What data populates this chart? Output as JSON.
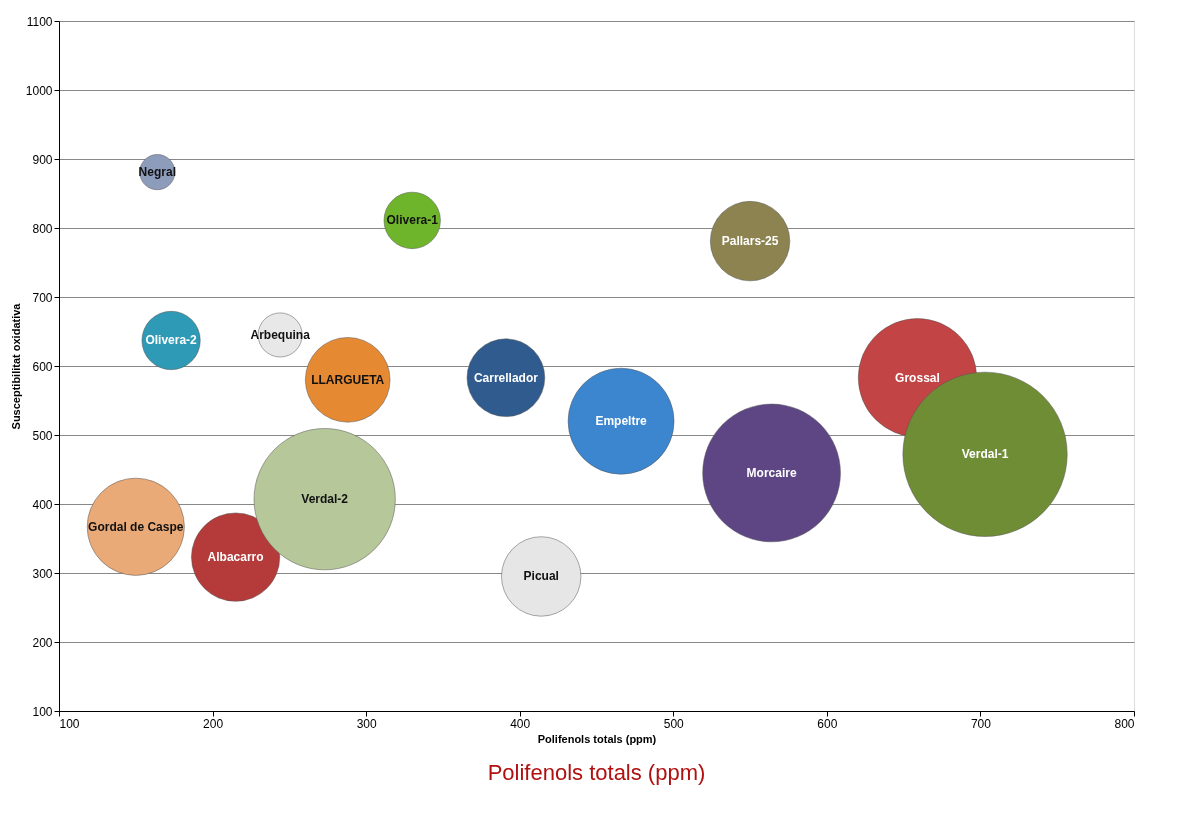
{
  "chart_data": {
    "type": "bubble",
    "xlabel": "Polifenols totals (ppm)",
    "ylabel": "Susceptibilitat oxidativa",
    "x": [
      164,
      330,
      550,
      173,
      244,
      288,
      391,
      466,
      659,
      703,
      564,
      150,
      215,
      273,
      414
    ],
    "values": [
      881,
      811,
      781,
      637,
      645,
      580,
      583,
      520,
      583,
      472,
      445,
      367,
      323,
      407,
      295
    ],
    "sizes": [
      0.046,
      0.118,
      0.234,
      0.126,
      0.072,
      0.266,
      0.224,
      0.416,
      0.519,
      1,
      0.703,
      0.35,
      0.289,
      0.74,
      0.234
    ],
    "colors": [
      "#8e9cbc",
      "#6fb52c",
      "#8c8350",
      "#2e9ab5",
      "#e8e8e8",
      "#e58a33",
      "#2f5b8e",
      "#3b86cf",
      "#c24444",
      "#6e8d35",
      "#5e4685",
      "#eaaa78",
      "#b53a3a",
      "#b6c79a",
      "#e6e6e6"
    ],
    "xlim": [
      100,
      800
    ],
    "xticks": [
      100,
      200,
      300,
      400,
      500,
      600,
      700,
      800
    ],
    "ylim": [
      100,
      1100
    ],
    "yticks": [
      100,
      200,
      300,
      400,
      500,
      600,
      700,
      800,
      900,
      1000,
      1100
    ],
    "grid": "y",
    "annotations": [
      {
        "text": "Negral",
        "x": 164,
        "y": 881
      },
      {
        "text": "Olivera-1",
        "x": 330,
        "y": 811
      },
      {
        "text": "Pallars-25",
        "x": 550,
        "y": 781
      },
      {
        "text": "Olivera-2",
        "x": 173,
        "y": 637
      },
      {
        "text": "Arbequina",
        "x": 244,
        "y": 645
      },
      {
        "text": "LLARGUETA",
        "x": 288,
        "y": 580
      },
      {
        "text": "Carrellador",
        "x": 391,
        "y": 583
      },
      {
        "text": "Empeltre",
        "x": 466,
        "y": 520
      },
      {
        "text": "Grossal",
        "x": 659,
        "y": 583
      },
      {
        "text": "Verdal-1",
        "x": 703,
        "y": 472
      },
      {
        "text": "Morcaire",
        "x": 564,
        "y": 445
      },
      {
        "text": "Gordal de Caspe",
        "x": 150,
        "y": 367
      },
      {
        "text": "Albacarro",
        "x": 215,
        "y": 323
      },
      {
        "text": "Verdal-2",
        "x": 273,
        "y": 407
      },
      {
        "text": "Picual",
        "x": 414,
        "y": 295
      },
      "Polifenols totals (ppm)"
    ]
  }
}
